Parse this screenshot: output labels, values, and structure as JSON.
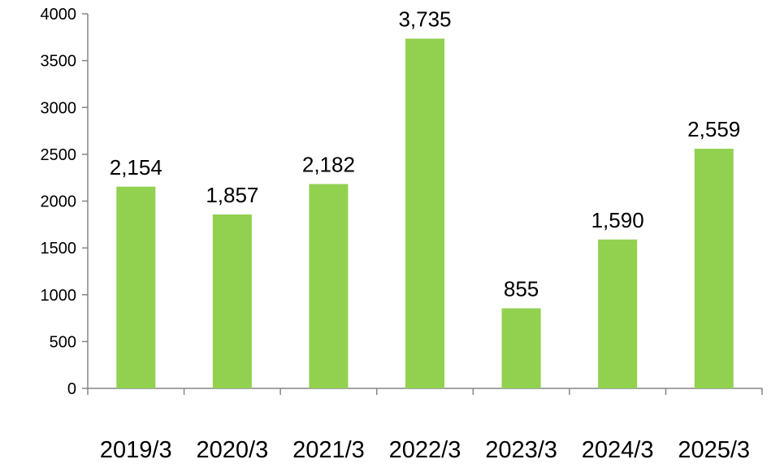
{
  "chart_data": {
    "type": "bar",
    "categories": [
      "2019/3",
      "2020/3",
      "2021/3",
      "2022/3",
      "2023/3",
      "2024/3",
      "2025/3"
    ],
    "values": [
      2154,
      1857,
      2182,
      3735,
      855,
      1590,
      2559
    ],
    "data_labels": [
      "2,154",
      "1,857",
      "2,182",
      "3,735",
      "855",
      "1,590",
      "2,559"
    ],
    "ylim": [
      0,
      4000
    ],
    "yticks": [
      "0",
      "500",
      "1000",
      "1500",
      "2000",
      "2500",
      "3000",
      "3500",
      "4000"
    ],
    "bar_color": "#92d050",
    "grid": false,
    "legend": "none"
  }
}
